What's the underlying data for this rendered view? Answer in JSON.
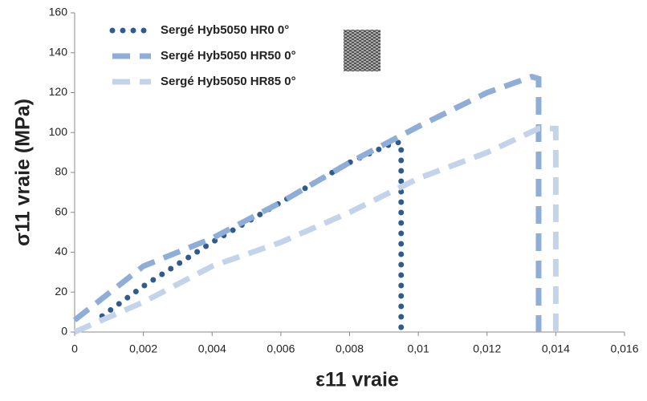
{
  "chart_data": {
    "type": "line",
    "x_label": "ε11 vraie",
    "y_label": "σ11 vraie (MPa)",
    "xlim": [
      0,
      0.016
    ],
    "ylim": [
      0,
      160
    ],
    "xticks": [
      0,
      {
        "value": 0.002,
        "label": "0,002"
      },
      {
        "value": 0.004,
        "label": "0,004"
      },
      {
        "value": 0.006,
        "label": "0,006"
      },
      {
        "value": 0.008,
        "label": "0,008"
      },
      {
        "value": 0.01,
        "label": "0,01"
      },
      {
        "value": 0.012,
        "label": "0,012"
      },
      {
        "value": 0.014,
        "label": "0,014"
      },
      {
        "value": 0.016,
        "label": "0,016"
      }
    ],
    "yticks": [
      0,
      20,
      40,
      60,
      80,
      100,
      120,
      140,
      160
    ],
    "grid": false,
    "legend": "top-left",
    "series": [
      {
        "name": "Sergé Hyb5050 HR0 0°",
        "color": "#2f5b8f",
        "style": "dotted",
        "x": [
          0.0008,
          0.002,
          0.004,
          0.006,
          0.008,
          0.0093,
          0.0095,
          0.0095
        ],
        "values": [
          8,
          23,
          45,
          65,
          85,
          95,
          95,
          0
        ]
      },
      {
        "name": "Sergé Hyb5050 HR50 0°",
        "color": "#8eaed8",
        "style": "dashed",
        "x": [
          0,
          0.002,
          0.004,
          0.006,
          0.008,
          0.01,
          0.012,
          0.0133,
          0.0135,
          0.0135
        ],
        "values": [
          6,
          33,
          47,
          65,
          85,
          103,
          120,
          128,
          127,
          0
        ]
      },
      {
        "name": "Sergé Hyb5050 HR85 0°",
        "color": "#c3d4ea",
        "style": "dashed",
        "x": [
          0,
          0.002,
          0.004,
          0.006,
          0.008,
          0.01,
          0.012,
          0.0135,
          0.014,
          0.014
        ],
        "values": [
          0,
          15,
          33,
          45,
          60,
          77,
          90,
          102,
          102,
          0
        ]
      }
    ]
  }
}
